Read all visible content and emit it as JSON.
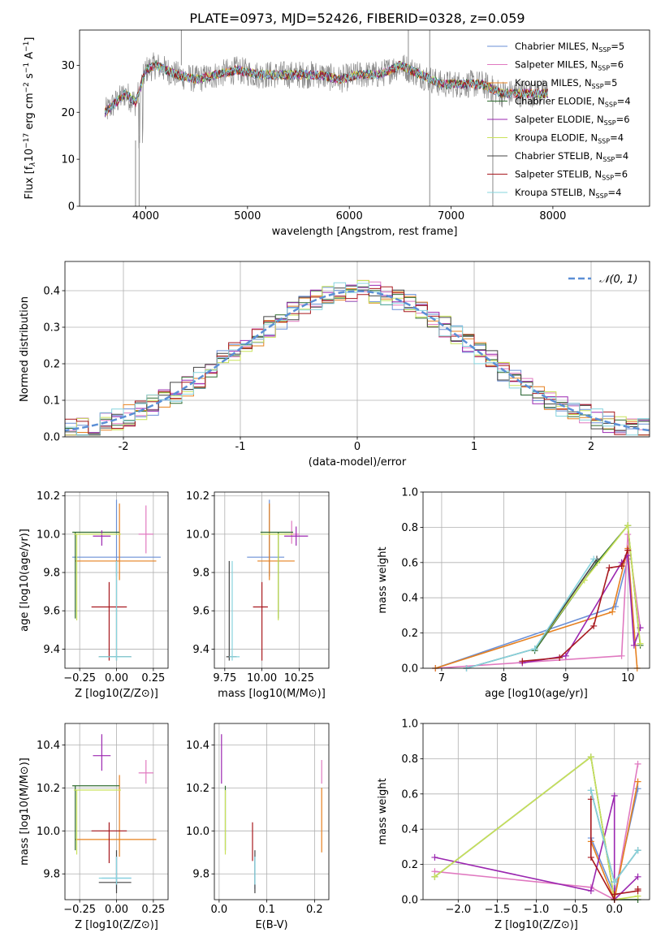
{
  "figure": {
    "title": "PLATE=0973, MJD=52426, FIBERID=0328, z=0.059"
  },
  "colors": {
    "Chabrier MILES": "#6a8fd6",
    "Salpeter MILES": "#e079c0",
    "Kroupa MILES": "#e6801f",
    "Chabrier ELODIE": "#2f6b2f",
    "Salpeter ELODIE": "#9b27b0",
    "Kroupa ELODIE": "#c9e25a",
    "Chabrier STELIB": "#444444",
    "Salpeter STELIB": "#a8191f",
    "Kroupa STELIB": "#86d4de",
    "normal": "#5b8fd6"
  },
  "chart_data": [
    {
      "id": "spectrum",
      "type": "line",
      "title": "PLATE=0973, MJD=52426, FIBERID=0328, z=0.059",
      "xlabel": "wavelength [Angstrom, rest frame]",
      "ylabel": "Flux [f_λ 10^-17 erg cm^-2 s^-1 A^-1]",
      "xlim": [
        3350,
        8950
      ],
      "ylim": [
        0,
        37.5
      ],
      "xticks": [
        4000,
        5000,
        6000,
        7000,
        8000
      ],
      "yticks": [
        0,
        10,
        20,
        30
      ],
      "grid": false,
      "legend": "top-right",
      "x": [
        3600,
        3700,
        3800,
        3900,
        4000,
        4100,
        4300,
        4500,
        4700,
        4900,
        5100,
        5300,
        5500,
        5700,
        5900,
        6100,
        6300,
        6500,
        6700,
        6900,
        7100,
        7300,
        7500,
        7700,
        7900
      ],
      "y": [
        20,
        22,
        24,
        22,
        29,
        30,
        28,
        27,
        28,
        29,
        28,
        28,
        28,
        28,
        27,
        28,
        28,
        30,
        28,
        26,
        26,
        26,
        24,
        24,
        24
      ],
      "series": [
        {
          "name": "Chabrier MILES, N_SSP=5"
        },
        {
          "name": "Salpeter MILES, N_SSP=6"
        },
        {
          "name": "Kroupa MILES, N_SSP=5"
        },
        {
          "name": "Chabrier ELODIE, N_SSP=4"
        },
        {
          "name": "Salpeter ELODIE, N_SSP=6"
        },
        {
          "name": "Kroupa ELODIE, N_SSP=4"
        },
        {
          "name": "Chabrier STELIB, N_SSP=4"
        },
        {
          "name": "Salpeter STELIB, N_SSP=6"
        },
        {
          "name": "Kroupa STELIB, N_SSP=4"
        }
      ]
    },
    {
      "id": "residuals",
      "type": "bar",
      "xlabel": "(data-model)/error",
      "ylabel": "Normed distribution",
      "xlim": [
        -2.5,
        2.5
      ],
      "ylim": [
        0,
        0.48
      ],
      "xticks": [
        -2,
        -1,
        0,
        1,
        2
      ],
      "yticks": [
        0.0,
        0.1,
        0.2,
        0.3,
        0.4
      ],
      "grid": true,
      "legend": "top-right",
      "legend_label": "𝒩(0, 1)"
    },
    {
      "id": "age-vs-z",
      "type": "scatter",
      "xlabel": "Z [log10(Z/Z⊙)]",
      "ylabel": "age [log10(age/yr)]",
      "xlim": [
        -0.35,
        0.35
      ],
      "ylim": [
        9.3,
        10.22
      ],
      "xticks": [
        -0.25,
        0.0,
        0.25
      ],
      "xticklabels": [
        "−0.25",
        "0.00",
        "0.25"
      ],
      "yticks": [
        9.4,
        9.6,
        9.8,
        10.0,
        10.2
      ],
      "grid": true
    },
    {
      "id": "age-vs-mass",
      "type": "scatter",
      "xlabel": "mass [log10(M/M⊙)]",
      "ylabel": "",
      "xlim": [
        9.68,
        10.45
      ],
      "ylim": [
        9.3,
        10.22
      ],
      "xticks": [
        9.75,
        10.0,
        10.25
      ],
      "xticklabels": [
        "9.75",
        "10.00",
        "10.25"
      ],
      "yticks": [
        9.4,
        9.6,
        9.8,
        10.0,
        10.2
      ],
      "grid": true
    },
    {
      "id": "weight-vs-age",
      "type": "line",
      "xlabel": "age [log10(age/yr)]",
      "ylabel": "mass weight",
      "xlim": [
        6.7,
        10.35
      ],
      "ylim": [
        0,
        1.0
      ],
      "xticks": [
        7,
        8,
        9,
        10
      ],
      "yticks": [
        0.0,
        0.2,
        0.4,
        0.6,
        0.8,
        1.0
      ],
      "grid": true
    },
    {
      "id": "mass-vs-z",
      "type": "scatter",
      "xlabel": "Z [log10(Z/Z⊙)]",
      "ylabel": "mass [log10(M/M⊙)]",
      "xlim": [
        -0.35,
        0.35
      ],
      "ylim": [
        9.68,
        10.5
      ],
      "xticks": [
        -0.25,
        0.0,
        0.25
      ],
      "xticklabels": [
        "−0.25",
        "0.00",
        "0.25"
      ],
      "yticks": [
        9.8,
        10.0,
        10.2,
        10.4
      ],
      "grid": true
    },
    {
      "id": "mass-vs-ebv",
      "type": "scatter",
      "xlabel": "E(B-V)",
      "ylabel": "",
      "xlim": [
        -0.01,
        0.23
      ],
      "ylim": [
        9.68,
        10.5
      ],
      "xticks": [
        0.0,
        0.1,
        0.2
      ],
      "xticklabels": [
        "0.0",
        "0.1",
        "0.2"
      ],
      "yticks": [
        9.8,
        10.0,
        10.2,
        10.4
      ],
      "grid": true
    },
    {
      "id": "weight-vs-z",
      "type": "line",
      "xlabel": "Z [log10(Z/Z⊙)]",
      "ylabel": "mass weight",
      "xlim": [
        -2.45,
        0.45
      ],
      "ylim": [
        0,
        1.0
      ],
      "xticks": [
        -2.0,
        -1.5,
        -1.0,
        -0.5,
        0.0
      ],
      "xticklabels": [
        "−2.0",
        "−1.5",
        "−1.0",
        "−0.5",
        "0.0"
      ],
      "yticks": [
        0.0,
        0.2,
        0.4,
        0.6,
        0.8,
        1.0
      ],
      "grid": true
    }
  ]
}
